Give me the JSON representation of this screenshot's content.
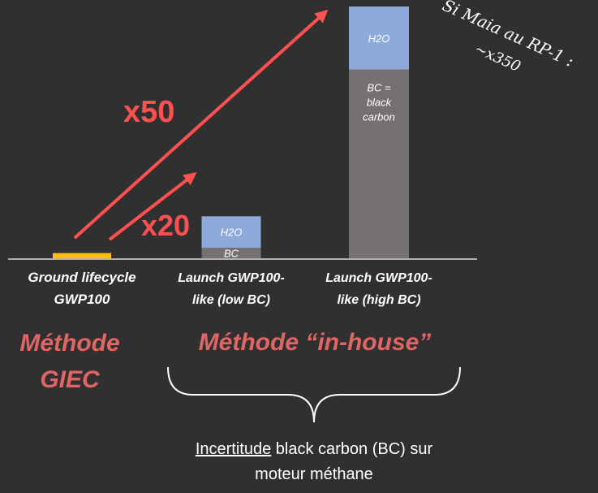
{
  "chart_data": {
    "type": "bar",
    "stacked": true,
    "categories": [
      [
        "Ground lifecycle",
        "GWP100"
      ],
      [
        "Launch GWP100-",
        "like (low BC)"
      ],
      [
        "Launch GWP100-",
        "like (high BC)"
      ]
    ],
    "series": [
      {
        "key": "ground",
        "color": "#ffc000",
        "values": [
          1,
          0,
          0
        ]
      },
      {
        "key": "bc",
        "color": "#767171",
        "values": [
          0,
          2,
          36
        ]
      },
      {
        "key": "h2o",
        "color": "#8eaadb",
        "values": [
          0,
          6,
          12
        ]
      }
    ],
    "segment_labels": [
      {
        "bar": 1,
        "series": "bc",
        "text": "BC"
      },
      {
        "bar": 1,
        "series": "h2o",
        "text": "H2O"
      },
      {
        "bar": 2,
        "series": "bc",
        "text": "BC = black carbon"
      },
      {
        "bar": 2,
        "series": "h2o",
        "text": "H2O"
      }
    ],
    "ylim": [
      0,
      48
    ],
    "grid": false,
    "legend": "none",
    "multipliers": [
      {
        "text": "x20",
        "color": "#ff5050"
      },
      {
        "text": "x50",
        "color": "#ff5050"
      }
    ]
  },
  "annotations": {
    "handwritten_line1": "Si Maia au RP-1 :",
    "handwritten_line2": "~x350",
    "method_giec_line1": "Méthode",
    "method_giec_line2": "GIEC",
    "method_inhouse": "Méthode “in-house”",
    "note_underlined": "Incertitude",
    "note_rest": " black carbon (BC) sur",
    "note_line2": "moteur méthane"
  },
  "colors": {
    "background": "#303030",
    "arrow": "#ff5050",
    "method_text": "#e06666",
    "text": "#ffffff"
  }
}
